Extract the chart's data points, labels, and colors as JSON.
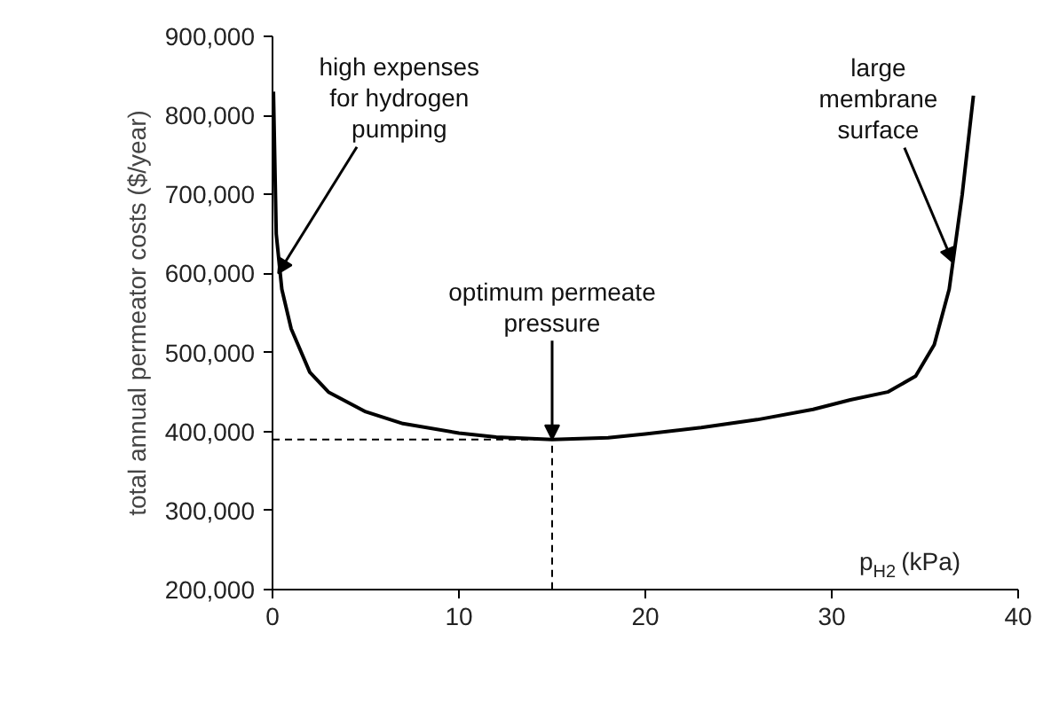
{
  "chart_data": {
    "type": "line",
    "xlabel": "p$_{H2}$ (kPa)",
    "ylabel": "total annual permeator costs ($/year)",
    "xlim": [
      0,
      40
    ],
    "xticks": [
      0,
      10,
      20,
      30,
      40
    ],
    "ylim": [
      200000,
      900000
    ],
    "yticks": [
      {
        "value": 200000,
        "label": "200,000"
      },
      {
        "value": 300000,
        "label": "300,000"
      },
      {
        "value": 400000,
        "label": "400,000"
      },
      {
        "value": 500000,
        "label": "500,000"
      },
      {
        "value": 600000,
        "label": "600,000"
      },
      {
        "value": 700000,
        "label": "700,000"
      },
      {
        "value": 800000,
        "label": "800,000"
      },
      {
        "value": 900000,
        "label": "900,000"
      }
    ],
    "grid": false,
    "marker": "none",
    "line_style": "solid",
    "series": [
      {
        "color": "#000000",
        "x": [
          0.05,
          0.2,
          0.5,
          1,
          2,
          3,
          5,
          7,
          10,
          12,
          15,
          18,
          20,
          23,
          26,
          29,
          31,
          33,
          34.5,
          35.5,
          36.3,
          37,
          37.6
        ],
        "values": [
          830000,
          650000,
          580000,
          530000,
          475000,
          450000,
          425000,
          410000,
          398000,
          393000,
          390000,
          392000,
          397000,
          405000,
          415000,
          428000,
          440000,
          450000,
          470000,
          510000,
          580000,
          700000,
          825000
        ]
      },
      {
        "color": "#000000",
        "line_style": "dashed",
        "x": [
          0,
          15,
          15
        ],
        "values": [
          390000,
          390000,
          200000
        ]
      }
    ],
    "annotations": [
      {
        "text": "high expenses\nfor hydrogen\npumping",
        "x": 0.3,
        "y": 600000
      },
      {
        "text": "optimum permeate\npressure",
        "x": 15,
        "y": 390000
      },
      {
        "text": "large\nmembrane\nsurface",
        "x": 36.5,
        "y": 614000
      }
    ]
  }
}
